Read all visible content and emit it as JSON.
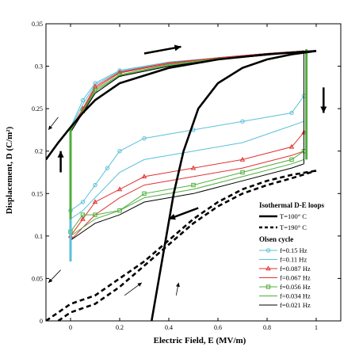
{
  "chart_data": {
    "type": "line",
    "xlabel": "Electric Field, E (MV/m)",
    "ylabel": "Displacement, D (C/m²)",
    "xlim": [
      -0.1,
      1.1
    ],
    "ylim": [
      0,
      0.35
    ],
    "x_ticks": [
      "0",
      "0.2",
      "0.4",
      "0.6",
      "0.8",
      "1"
    ],
    "y_ticks": [
      "0",
      "0.05",
      "0.1",
      "0.15",
      "0.2",
      "0.25",
      "0.3",
      "0.35"
    ],
    "legend": {
      "isothermal_title": "Isothermal D-E loops",
      "olsen_title": "Olsen cycle"
    },
    "isothermal": [
      {
        "name": "T=100° C",
        "color": "#000000",
        "style": "solid",
        "upper_branch": [
          [
            -0.1,
            0.19
          ],
          [
            -0.05,
            0.21
          ],
          [
            0,
            0.228
          ],
          [
            0.05,
            0.245
          ],
          [
            0.1,
            0.26
          ],
          [
            0.2,
            0.28
          ],
          [
            0.4,
            0.298
          ],
          [
            0.6,
            0.308
          ],
          [
            0.8,
            0.314
          ],
          [
            1.0,
            0.318
          ]
        ],
        "lower_branch": [
          [
            0.33,
            0
          ],
          [
            0.36,
            0.05
          ],
          [
            0.39,
            0.1
          ],
          [
            0.42,
            0.15
          ],
          [
            0.46,
            0.2
          ],
          [
            0.52,
            0.25
          ],
          [
            0.6,
            0.28
          ],
          [
            0.7,
            0.298
          ],
          [
            0.8,
            0.308
          ],
          [
            0.9,
            0.314
          ],
          [
            1.0,
            0.318
          ]
        ]
      },
      {
        "name": "T=190° C",
        "color": "#000000",
        "style": "dashed",
        "upper_branch": [
          [
            -0.1,
            0
          ],
          [
            -0.05,
            0.01
          ],
          [
            0,
            0.02
          ],
          [
            0.1,
            0.03
          ],
          [
            0.2,
            0.05
          ],
          [
            0.3,
            0.07
          ],
          [
            0.4,
            0.095
          ],
          [
            0.5,
            0.12
          ],
          [
            0.6,
            0.14
          ],
          [
            0.7,
            0.155
          ],
          [
            0.8,
            0.165
          ],
          [
            0.9,
            0.172
          ],
          [
            1.0,
            0.177
          ]
        ],
        "lower_branch": [
          [
            -0.05,
            0
          ],
          [
            0,
            0.01
          ],
          [
            0.1,
            0.02
          ],
          [
            0.2,
            0.04
          ],
          [
            0.3,
            0.065
          ],
          [
            0.4,
            0.09
          ],
          [
            0.5,
            0.115
          ],
          [
            0.6,
            0.135
          ],
          [
            0.7,
            0.15
          ],
          [
            0.8,
            0.16
          ],
          [
            0.9,
            0.168
          ],
          [
            1.0,
            0.177
          ]
        ]
      }
    ],
    "olsen_cycles": [
      {
        "name": "f=0.15 Hz",
        "color": "#5bc0d8",
        "marker": "circle",
        "upper_branch": [
          [
            0,
            0.228
          ],
          [
            0.05,
            0.26
          ],
          [
            0.1,
            0.28
          ],
          [
            0.2,
            0.295
          ],
          [
            0.4,
            0.305
          ],
          [
            0.6,
            0.31
          ],
          [
            0.8,
            0.315
          ],
          [
            0.95,
            0.318
          ]
        ],
        "lower_branch": [
          [
            0,
            0.13
          ],
          [
            0.05,
            0.14
          ],
          [
            0.1,
            0.16
          ],
          [
            0.15,
            0.18
          ],
          [
            0.2,
            0.2
          ],
          [
            0.3,
            0.215
          ],
          [
            0.5,
            0.225
          ],
          [
            0.7,
            0.235
          ],
          [
            0.9,
            0.245
          ],
          [
            0.95,
            0.265
          ]
        ]
      },
      {
        "name": "f=0.11 Hz",
        "color": "#5bc0d8",
        "marker": "none",
        "upper_branch": [
          [
            0,
            0.227
          ],
          [
            0.05,
            0.255
          ],
          [
            0.1,
            0.278
          ],
          [
            0.2,
            0.294
          ],
          [
            0.4,
            0.304
          ],
          [
            0.6,
            0.31
          ],
          [
            0.8,
            0.315
          ],
          [
            0.95,
            0.318
          ]
        ],
        "lower_branch": [
          [
            0,
            0.12
          ],
          [
            0.05,
            0.13
          ],
          [
            0.1,
            0.145
          ],
          [
            0.2,
            0.175
          ],
          [
            0.3,
            0.19
          ],
          [
            0.5,
            0.2
          ],
          [
            0.7,
            0.21
          ],
          [
            0.9,
            0.23
          ],
          [
            0.95,
            0.235
          ]
        ]
      },
      {
        "name": "f=0.087 Hz",
        "color": "#e23232",
        "marker": "triangle",
        "upper_branch": [
          [
            0,
            0.226
          ],
          [
            0.05,
            0.25
          ],
          [
            0.1,
            0.276
          ],
          [
            0.2,
            0.293
          ],
          [
            0.4,
            0.304
          ],
          [
            0.6,
            0.31
          ],
          [
            0.8,
            0.315
          ],
          [
            0.95,
            0.318
          ]
        ],
        "lower_branch": [
          [
            0,
            0.1
          ],
          [
            0.05,
            0.12
          ],
          [
            0.1,
            0.14
          ],
          [
            0.2,
            0.155
          ],
          [
            0.3,
            0.17
          ],
          [
            0.5,
            0.18
          ],
          [
            0.7,
            0.19
          ],
          [
            0.9,
            0.205
          ],
          [
            0.95,
            0.222
          ]
        ]
      },
      {
        "name": "f=0.067 Hz",
        "color": "#e23232",
        "marker": "none",
        "upper_branch": [
          [
            0,
            0.225
          ],
          [
            0.05,
            0.248
          ],
          [
            0.1,
            0.274
          ],
          [
            0.2,
            0.292
          ],
          [
            0.4,
            0.303
          ],
          [
            0.6,
            0.31
          ],
          [
            0.8,
            0.315
          ],
          [
            0.95,
            0.318
          ]
        ],
        "lower_branch": [
          [
            0,
            0.095
          ],
          [
            0.05,
            0.11
          ],
          [
            0.1,
            0.125
          ],
          [
            0.2,
            0.145
          ],
          [
            0.3,
            0.16
          ],
          [
            0.5,
            0.17
          ],
          [
            0.7,
            0.18
          ],
          [
            0.9,
            0.195
          ],
          [
            0.95,
            0.2
          ]
        ]
      },
      {
        "name": "f=0.056 Hz",
        "color": "#4fae3c",
        "marker": "square",
        "upper_branch": [
          [
            0,
            0.224
          ],
          [
            0.05,
            0.247
          ],
          [
            0.1,
            0.272
          ],
          [
            0.2,
            0.29
          ],
          [
            0.4,
            0.302
          ],
          [
            0.6,
            0.309
          ],
          [
            0.8,
            0.314
          ],
          [
            0.95,
            0.318
          ]
        ],
        "lower_branch": [
          [
            0,
            0.105
          ],
          [
            0.05,
            0.125
          ],
          [
            0.1,
            0.125
          ],
          [
            0.2,
            0.13
          ],
          [
            0.3,
            0.15
          ],
          [
            0.5,
            0.16
          ],
          [
            0.7,
            0.175
          ],
          [
            0.9,
            0.19
          ],
          [
            0.95,
            0.2
          ]
        ]
      },
      {
        "name": "f=0.034 Hz",
        "color": "#4fae3c",
        "marker": "none",
        "upper_branch": [
          [
            0,
            0.223
          ],
          [
            0.05,
            0.246
          ],
          [
            0.1,
            0.27
          ],
          [
            0.2,
            0.289
          ],
          [
            0.4,
            0.301
          ],
          [
            0.6,
            0.309
          ],
          [
            0.8,
            0.314
          ],
          [
            0.95,
            0.318
          ]
        ],
        "lower_branch": [
          [
            0,
            0.1
          ],
          [
            0.05,
            0.11
          ],
          [
            0.1,
            0.12
          ],
          [
            0.2,
            0.13
          ],
          [
            0.3,
            0.145
          ],
          [
            0.5,
            0.155
          ],
          [
            0.7,
            0.17
          ],
          [
            0.9,
            0.185
          ],
          [
            0.95,
            0.19
          ]
        ]
      },
      {
        "name": "f=0.021 Hz",
        "color": "#000000",
        "marker": "none",
        "upper_branch": [
          [
            0,
            0.222
          ],
          [
            0.05,
            0.245
          ],
          [
            0.1,
            0.268
          ],
          [
            0.2,
            0.288
          ],
          [
            0.4,
            0.3
          ],
          [
            0.6,
            0.308
          ],
          [
            0.8,
            0.313
          ],
          [
            0.95,
            0.318
          ]
        ],
        "lower_branch": [
          [
            0,
            0.095
          ],
          [
            0.05,
            0.105
          ],
          [
            0.1,
            0.115
          ],
          [
            0.2,
            0.125
          ],
          [
            0.3,
            0.14
          ],
          [
            0.5,
            0.15
          ],
          [
            0.7,
            0.165
          ],
          [
            0.9,
            0.18
          ],
          [
            0.95,
            0.185
          ]
        ]
      }
    ]
  }
}
